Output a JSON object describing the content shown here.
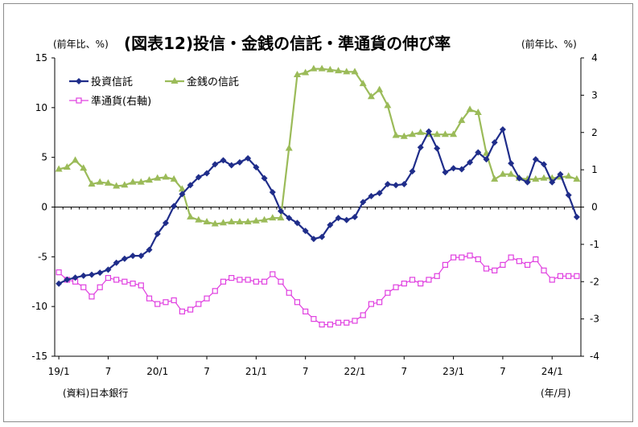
{
  "chart_data": {
    "type": "line",
    "title": "(図表12)投信・金銭の信託・準通貨の伸び率",
    "left_unit": "(前年比、%)",
    "right_unit": "(前年比、%)",
    "x_unit": "(年/月)",
    "source": "(資料)日本銀行",
    "left_axis": {
      "min": -15,
      "max": 15,
      "step": 5,
      "ticks": [
        "15",
        "10",
        "5",
        "0",
        "-5",
        "-10",
        "-15"
      ]
    },
    "right_axis": {
      "min": -4,
      "max": 4,
      "step": 1,
      "ticks": [
        "4",
        "3",
        "2",
        "1",
        "0",
        "-1",
        "-2",
        "-3",
        "-4"
      ]
    },
    "x_labels": [
      {
        "index": 0,
        "label": "19/1"
      },
      {
        "index": 6,
        "label": "7"
      },
      {
        "index": 12,
        "label": "20/1"
      },
      {
        "index": 18,
        "label": "7"
      },
      {
        "index": 24,
        "label": "21/1"
      },
      {
        "index": 30,
        "label": "7"
      },
      {
        "index": 36,
        "label": "22/1"
      },
      {
        "index": 42,
        "label": "7"
      },
      {
        "index": 48,
        "label": "23/1"
      },
      {
        "index": 54,
        "label": "7"
      },
      {
        "index": 60,
        "label": "24/1"
      }
    ],
    "legend": [
      "投資信託",
      "金銭の信託",
      "準通貨(右軸)"
    ],
    "series": [
      {
        "name": "投資信託",
        "axis": "left",
        "color": "#1f2d8a",
        "marker": "diamond",
        "values": [
          -7.7,
          -7.3,
          -7.1,
          -6.9,
          -6.8,
          -6.6,
          -6.3,
          -5.6,
          -5.2,
          -4.9,
          -4.9,
          -4.3,
          -2.7,
          -1.6,
          0.1,
          1.3,
          2.2,
          3.0,
          3.4,
          4.3,
          4.7,
          4.2,
          4.5,
          4.9,
          4.0,
          2.9,
          1.5,
          -0.4,
          -1.1,
          -1.6,
          -2.4,
          -3.2,
          -3.0,
          -1.8,
          -1.1,
          -1.3,
          -1.0,
          0.5,
          1.1,
          1.4,
          2.3,
          2.2,
          2.3,
          3.6,
          6.0,
          7.6,
          5.9,
          3.5,
          3.9,
          3.8,
          4.5,
          5.5,
          4.8,
          6.5,
          7.8,
          4.4,
          2.9,
          2.5,
          4.8,
          4.3,
          2.5,
          3.3,
          1.2,
          -1.0
        ]
      },
      {
        "name": "金銭の信託",
        "axis": "left",
        "color": "#9bbb59",
        "marker": "triangle",
        "values": [
          3.8,
          4.0,
          4.7,
          3.9,
          2.3,
          2.5,
          2.4,
          2.1,
          2.2,
          2.5,
          2.5,
          2.7,
          2.9,
          3.0,
          2.8,
          1.8,
          -1.0,
          -1.3,
          -1.5,
          -1.7,
          -1.6,
          -1.5,
          -1.5,
          -1.5,
          -1.4,
          -1.3,
          -1.1,
          -1.1,
          5.9,
          13.3,
          13.5,
          13.9,
          13.9,
          13.8,
          13.7,
          13.6,
          13.6,
          12.4,
          11.1,
          11.8,
          10.2,
          7.2,
          7.1,
          7.3,
          7.5,
          7.3,
          7.3,
          7.3,
          7.3,
          8.7,
          9.8,
          9.5,
          5.4,
          2.8,
          3.3,
          3.3,
          2.9,
          2.8,
          2.8,
          2.9,
          2.9,
          3.0,
          3.1,
          2.8
        ]
      },
      {
        "name": "準通貨(右軸)",
        "axis": "right",
        "color": "#e040e0",
        "marker": "square",
        "values": [
          -1.75,
          -1.95,
          -2.0,
          -2.15,
          -2.4,
          -2.15,
          -1.9,
          -1.95,
          -2.0,
          -2.05,
          -2.1,
          -2.45,
          -2.6,
          -2.55,
          -2.5,
          -2.8,
          -2.75,
          -2.6,
          -2.45,
          -2.25,
          -2.0,
          -1.9,
          -1.95,
          -1.95,
          -2.0,
          -2.0,
          -1.8,
          -2.0,
          -2.3,
          -2.55,
          -2.8,
          -3.0,
          -3.15,
          -3.15,
          -3.1,
          -3.1,
          -3.05,
          -2.9,
          -2.6,
          -2.55,
          -2.3,
          -2.15,
          -2.05,
          -1.95,
          -2.05,
          -1.95,
          -1.85,
          -1.55,
          -1.35,
          -1.35,
          -1.3,
          -1.4,
          -1.65,
          -1.7,
          -1.55,
          -1.35,
          -1.45,
          -1.55,
          -1.4,
          -1.7,
          -1.95,
          -1.85,
          -1.85,
          -1.85
        ]
      }
    ]
  }
}
